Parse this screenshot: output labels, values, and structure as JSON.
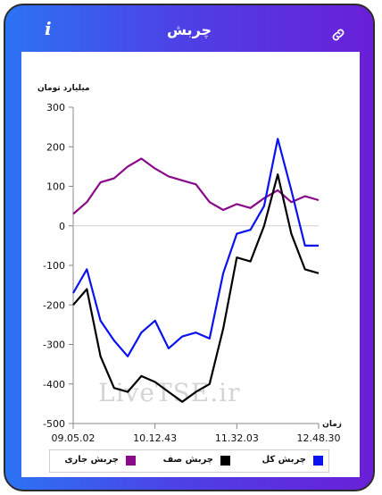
{
  "header": {
    "title": "چربش",
    "info_icon": "info-icon",
    "link_icon": "link-icon"
  },
  "colors": {
    "background_gradient_start": "#2c73f4",
    "background_gradient_end": "#6a1fd8",
    "total": "#0a12ee",
    "queue": "#000000",
    "current": "#8a0a8a"
  },
  "watermark": "LiveTSE.ir",
  "chart_data": {
    "type": "line",
    "ylabel": "میلیارد تومان",
    "xlabel": "زمان",
    "ylim": [
      -500,
      300
    ],
    "yticks": [
      300,
      200,
      100,
      0,
      -100,
      -200,
      -300,
      -400,
      -500
    ],
    "xticks": [
      "09.05.02",
      "10.12.43",
      "11.32.03",
      "12.48.30"
    ],
    "x": [
      "09.05.02",
      "09.20",
      "09.35",
      "09.50",
      "10.00",
      "10.12.43",
      "10.25",
      "10.40",
      "10.55",
      "11.10",
      "11.20",
      "11.32.03",
      "11.45",
      "12.00",
      "12.15",
      "12.25",
      "12.35",
      "12.40",
      "12.48.30"
    ],
    "series": [
      {
        "name": "چربش کل",
        "color": "#0a12ee",
        "values": [
          -170,
          -110,
          -240,
          -290,
          -330,
          -270,
          -240,
          -310,
          -280,
          -270,
          -285,
          -120,
          -20,
          -10,
          50,
          220,
          90,
          -50,
          -50
        ]
      },
      {
        "name": "چربش صف",
        "color": "#000000",
        "values": [
          -200,
          -160,
          -330,
          -410,
          -420,
          -380,
          -395,
          -420,
          -445,
          -420,
          -400,
          -260,
          -80,
          -90,
          0,
          130,
          -20,
          -110,
          -120
        ]
      },
      {
        "name": "چربش جاری",
        "color": "#8a0a8a",
        "values": [
          30,
          60,
          110,
          120,
          150,
          170,
          145,
          125,
          115,
          105,
          60,
          40,
          55,
          45,
          70,
          90,
          60,
          75,
          65
        ]
      }
    ],
    "legend_position": "bottom",
    "grid": false
  }
}
